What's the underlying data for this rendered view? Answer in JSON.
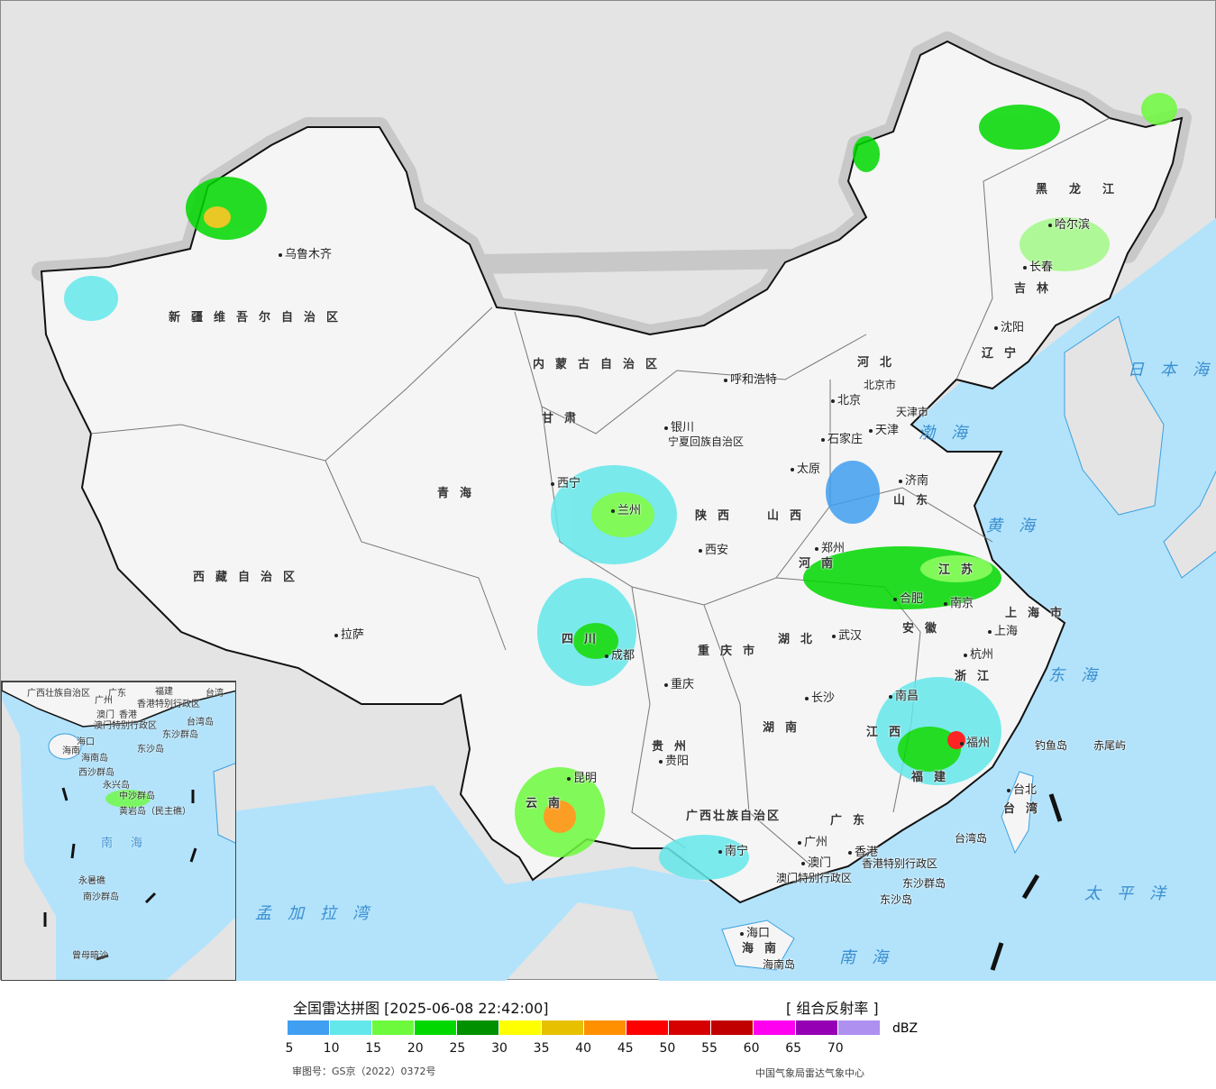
{
  "header": {
    "title": "全国雷达拼图 [2025-06-08 22:42:00]",
    "product": "[ 组合反射率 ]"
  },
  "legend": {
    "unit": "dBZ",
    "ticks": [
      "5",
      "10",
      "15",
      "20",
      "25",
      "30",
      "35",
      "40",
      "45",
      "50",
      "55",
      "60",
      "65",
      "70"
    ],
    "colors": [
      "#419ff1",
      "#64e7eb",
      "#6dfa3d",
      "#00d800",
      "#019000",
      "#ffff00",
      "#e7c000",
      "#ff9000",
      "#ff0000",
      "#d60000",
      "#c00000",
      "#ff00f0",
      "#9600b4",
      "#ad90f0"
    ]
  },
  "footer": {
    "approval": "审图号：GS京（2022）0372号",
    "source": "中国气象局雷达气象中心"
  },
  "map": {
    "provinces": [
      "新疆维吾尔自治区",
      "西藏自治区",
      "青海",
      "甘肃",
      "内蒙古自治区",
      "黑龙江",
      "吉林",
      "辽宁",
      "河北",
      "山西",
      "山东",
      "河南",
      "陕西",
      "四川",
      "重庆市",
      "贵州",
      "云南",
      "湖北",
      "湖南",
      "江西",
      "福建",
      "浙江",
      "江苏",
      "安徽",
      "广东",
      "广西壮族自治区",
      "海南",
      "台湾",
      "上海市"
    ],
    "cities": [
      "乌鲁木齐",
      "拉萨",
      "西宁",
      "兰州",
      "银川",
      "呼和浩特",
      "北京",
      "天津",
      "石家庄",
      "太原",
      "济南",
      "郑州",
      "西安",
      "成都",
      "重庆",
      "贵阳",
      "昆明",
      "南宁",
      "广州",
      "澳门",
      "香港",
      "长沙",
      "武汉",
      "南昌",
      "福州",
      "杭州",
      "上海",
      "南京",
      "合肥",
      "哈尔滨",
      "长春",
      "沈阳",
      "海口",
      "台北"
    ],
    "other": [
      "香港特别行政区",
      "澳门特别行政区",
      "东沙群岛",
      "东沙岛",
      "海南岛",
      "台湾岛",
      "钓鱼岛",
      "赤尾屿",
      "宁夏回族自治区",
      "北京市",
      "天津市"
    ],
    "seas": [
      "日本海",
      "渤海",
      "黄海",
      "东海",
      "太平洋",
      "南海",
      "孟加拉湾"
    ],
    "inset": [
      "广西壮族自治区",
      "广东",
      "福建",
      "台湾",
      "广州",
      "澳门",
      "香港",
      "香港特别行政区",
      "台湾岛",
      "澳门特别行政区",
      "东沙群岛",
      "东沙岛",
      "海口",
      "海南",
      "海南岛",
      "西沙群岛",
      "永兴岛",
      "中沙群岛",
      "黄岩岛（民主礁）",
      "南海",
      "永暑礁",
      "南沙群岛",
      "曾母暗沙"
    ]
  },
  "colors": {
    "land": "#f4f4f4",
    "foreign_land": "#e4e4e4",
    "ocean": "#b3e3fb",
    "border": "#111111"
  }
}
